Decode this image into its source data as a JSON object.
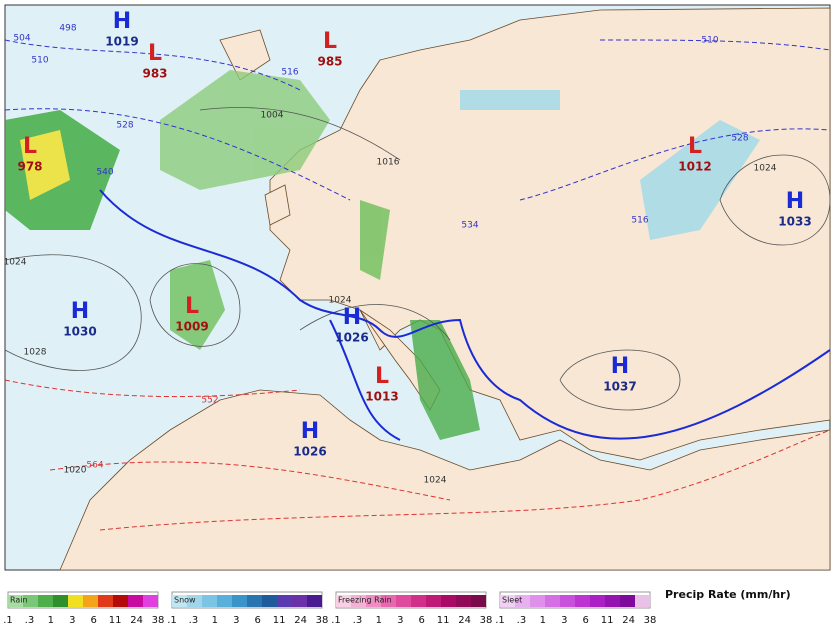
{
  "centers": [
    {
      "type": "H",
      "pressure": "1019"
    },
    {
      "type": "L",
      "pressure": "983"
    },
    {
      "type": "L",
      "pressure": "985"
    },
    {
      "type": "L",
      "pressure": "978"
    },
    {
      "type": "L",
      "pressure": "1012"
    },
    {
      "type": "H",
      "pressure": "1033"
    },
    {
      "type": "H",
      "pressure": "1030"
    },
    {
      "type": "L",
      "pressure": "1009"
    },
    {
      "type": "H",
      "pressure": "1026"
    },
    {
      "type": "L",
      "pressure": "1013"
    },
    {
      "type": "H",
      "pressure": "1037"
    },
    {
      "type": "H",
      "pressure": "1026"
    }
  ],
  "contour_labels": [
    "498",
    "504",
    "510",
    "516",
    "528",
    "540",
    "552",
    "564",
    "1004",
    "1016",
    "1024",
    "1028",
    "1020",
    "1024",
    "1024",
    "534",
    "510",
    "528",
    "516",
    "1024"
  ],
  "legend": {
    "title": "Precip Rate (mm/hr)",
    "panels": [
      "Rain",
      "Snow",
      "Freezing Rain",
      "Sleet"
    ],
    "ticks": [
      ".1",
      ".3",
      "1",
      "3",
      "6",
      "11",
      "24",
      "38"
    ]
  }
}
